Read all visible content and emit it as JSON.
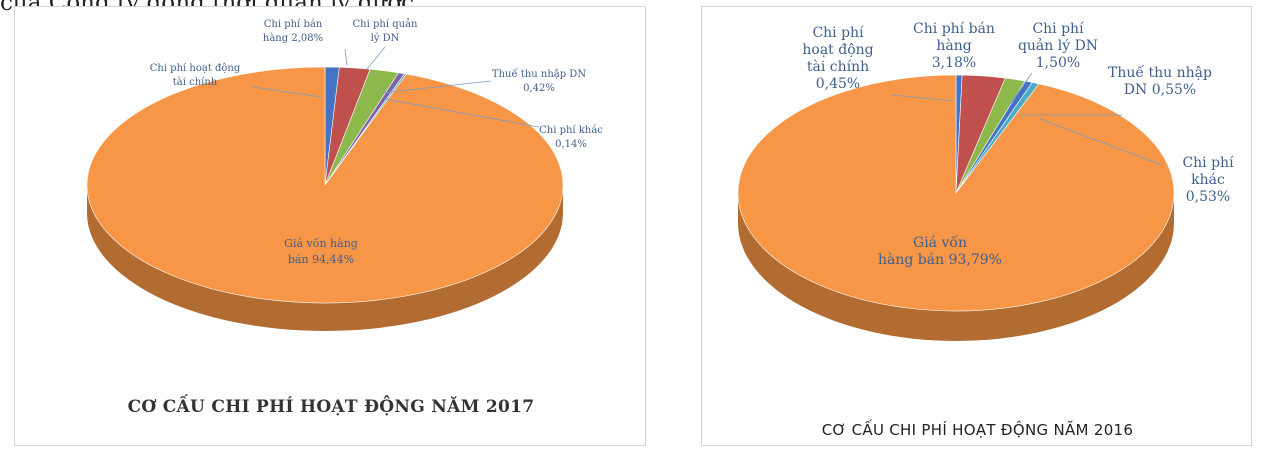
{
  "top_text": "của Công ty đồng thời quản lý được",
  "chart_data": [
    {
      "type": "pie",
      "title": "CƠ CẤU CHI PHÍ HOẠT ĐỘNG NĂM 2017",
      "slices": [
        {
          "label": "Chi phí hoạt động tài chính 0,96%",
          "value": 0.96,
          "color": "#4472c4"
        },
        {
          "label": "Chi phí bán hàng 2,08%",
          "value": 2.08,
          "color": "#c0504d"
        },
        {
          "label": "Chi phí quản lý DN 1,96%",
          "value": 1.96,
          "color": "#8db84b"
        },
        {
          "label": "Thuế thu nhập DN 0,42%",
          "value": 0.42,
          "color": "#7f63a8"
        },
        {
          "label": "Chi phí khác 0,14%",
          "value": 0.14,
          "color": "#4bacc6"
        },
        {
          "label": "Giá vốn hàng bán 94,44%",
          "value": 94.44,
          "color": "#f79646"
        }
      ]
    },
    {
      "type": "pie",
      "title": "CƠ CẤU CHI PHÍ HOẠT ĐỘNG NĂM 2016",
      "slices": [
        {
          "label": "Chi phí hoạt động tài chính 0,45%",
          "value": 0.45,
          "color": "#4472c4"
        },
        {
          "label": "Chi phí bán hàng 3,18%",
          "value": 3.18,
          "color": "#c0504d"
        },
        {
          "label": "Chi phí quản lý DN 1,50%",
          "value": 1.5,
          "color": "#8db84b"
        },
        {
          "label": "Thuế thu nhập DN 0,55%",
          "value": 0.55,
          "color": "#4472c4"
        },
        {
          "label": "Chi phí khác 0,53%",
          "value": 0.53,
          "color": "#4bacc6"
        },
        {
          "label": "Giá vốn hàng bán 93,79%",
          "value": 93.79,
          "color": "#f79646"
        }
      ]
    }
  ]
}
